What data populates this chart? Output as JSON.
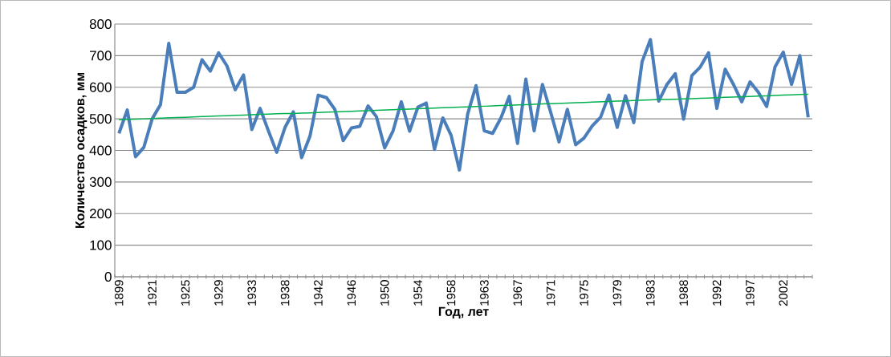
{
  "chart_data": {
    "type": "line",
    "xlabel": "Год, лет",
    "ylabel": "Количество осадков, мм",
    "categories": [
      "1899",
      null,
      null,
      null,
      "1921",
      null,
      null,
      null,
      "1925",
      null,
      null,
      null,
      "1929",
      null,
      null,
      null,
      "1933",
      null,
      null,
      null,
      "1938",
      null,
      null,
      null,
      "1942",
      null,
      null,
      null,
      "1946",
      null,
      null,
      null,
      "1950",
      null,
      null,
      null,
      "1954",
      null,
      null,
      null,
      "1958",
      null,
      null,
      null,
      "1963",
      null,
      null,
      null,
      "1967",
      null,
      null,
      null,
      "1971",
      null,
      null,
      null,
      "1975",
      null,
      null,
      null,
      "1979",
      null,
      null,
      null,
      "1983",
      null,
      null,
      null,
      "1988",
      null,
      null,
      null,
      "1992",
      null,
      null,
      null,
      "1997",
      null,
      null,
      null,
      "2002",
      null,
      null,
      null
    ],
    "series": [
      {
        "color": "#4a7ebb",
        "values": [
          454,
          528,
          380,
          410,
          500,
          545,
          739,
          584,
          584,
          600,
          687,
          651,
          709,
          668,
          592,
          639,
          466,
          533,
          462,
          394,
          473,
          522,
          377,
          445,
          575,
          567,
          530,
          431,
          471,
          476,
          541,
          507,
          408,
          461,
          554,
          461,
          537,
          550,
          403,
          503,
          448,
          338,
          516,
          605,
          462,
          454,
          503,
          571,
          422,
          626,
          462,
          609,
          520,
          427,
          530,
          418,
          439,
          478,
          505,
          575,
          473,
          573,
          488,
          681,
          751,
          556,
          609,
          643,
          499,
          637,
          664,
          709,
          533,
          657,
          609,
          554,
          617,
          584,
          539,
          664,
          711,
          609,
          700,
          505
        ]
      },
      {
        "type": "line",
        "color": "#00b050",
        "values": [
          497,
          498,
          499,
          500,
          501,
          502,
          503,
          504,
          505,
          506,
          507,
          508,
          509,
          510,
          511,
          512,
          513,
          514,
          515,
          516,
          517,
          517,
          518,
          519,
          520,
          521,
          522,
          523,
          524,
          525,
          526,
          527,
          528,
          529,
          530,
          531,
          532,
          533,
          534,
          535,
          536,
          537,
          538,
          539,
          540,
          541,
          542,
          543,
          544,
          545,
          546,
          547,
          548,
          549,
          550,
          551,
          552,
          553,
          554,
          555,
          556,
          557,
          558,
          559,
          560,
          561,
          561,
          562,
          563,
          564,
          565,
          566,
          567,
          568,
          569,
          570,
          571,
          572,
          573,
          574,
          575,
          576,
          577,
          578
        ]
      }
    ],
    "ylim": [
      0,
      800
    ],
    "yticks": [
      0,
      100,
      200,
      300,
      400,
      500,
      600,
      700,
      800
    ],
    "grid": "y",
    "marker": "none",
    "line_style": "solid"
  }
}
